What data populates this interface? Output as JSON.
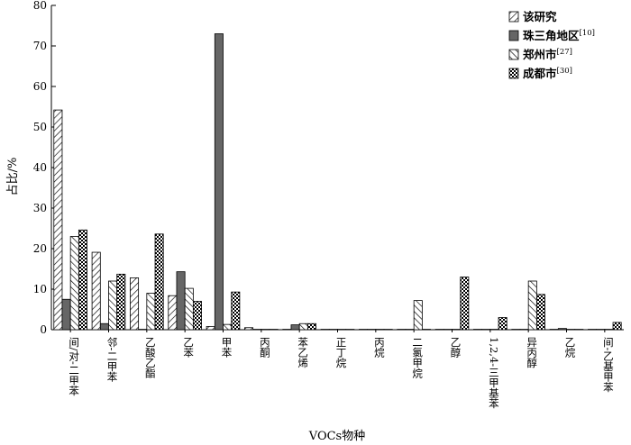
{
  "chart_data": {
    "type": "bar",
    "xlabel": "VOCs物种",
    "ylabel": "占比/%",
    "ylim": [
      0,
      80
    ],
    "yticks": [
      0,
      10,
      20,
      30,
      40,
      50,
      60,
      70,
      80
    ],
    "grid": false,
    "legend_position": "top-right",
    "categories": [
      "间/对-二甲苯",
      "邻-二甲苯",
      "乙酸乙酯",
      "乙苯",
      "甲苯",
      "丙酮",
      "苯乙烯",
      "正丁烷",
      "丙烷",
      "二氯甲烷",
      "乙醇",
      "1,2,4-三甲基苯",
      "异丙醇",
      "乙烷",
      "间-乙基甲苯"
    ],
    "series": [
      {
        "name": "该研究",
        "ref": "",
        "pattern": "hatch-fwd",
        "values": [
          54.2,
          19.1,
          12.8,
          8.4,
          0.8,
          0.5,
          0.1,
          0.1,
          0.1,
          0.1,
          0.1,
          0.1,
          0.1,
          0.1,
          0.1
        ]
      },
      {
        "name": "珠三角地区",
        "ref": "[10]",
        "pattern": "solid-gray",
        "values": [
          7.5,
          1.5,
          0.1,
          14.3,
          73.0,
          0.1,
          1.2,
          0.1,
          0.1,
          0.1,
          0.1,
          0.1,
          0.1,
          0.3,
          0.1
        ]
      },
      {
        "name": "郑州市",
        "ref": "[27]",
        "pattern": "hatch-back",
        "values": [
          23.0,
          12.0,
          9.0,
          10.2,
          1.3,
          0.1,
          1.5,
          0.1,
          0.1,
          7.2,
          0.1,
          0.1,
          12.0,
          0.1,
          0.1
        ]
      },
      {
        "name": "成都市",
        "ref": "[30]",
        "pattern": "checker",
        "values": [
          24.6,
          13.7,
          23.6,
          7.0,
          9.3,
          0.1,
          1.5,
          0.1,
          0.1,
          0.1,
          13.0,
          3.0,
          8.7,
          0.1,
          1.8
        ]
      }
    ]
  }
}
